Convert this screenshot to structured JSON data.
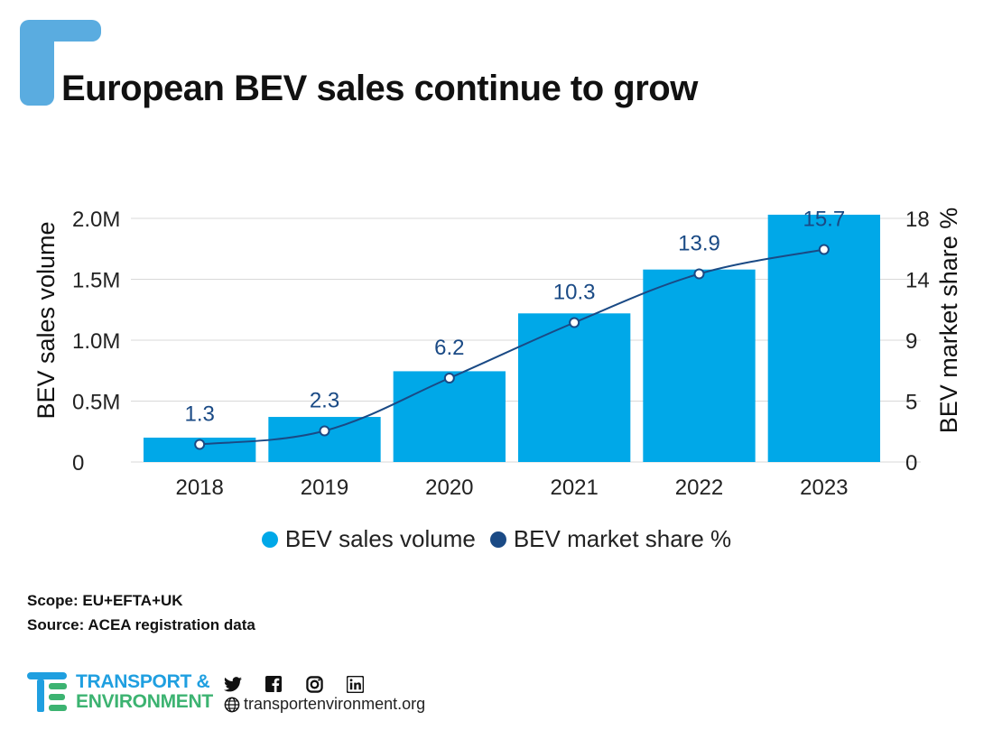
{
  "title": "European BEV sales continue to grow",
  "colors": {
    "accent_block": "#5aace0",
    "bars": "#00a8e8",
    "line": "#1a4a85",
    "grid": "#d9d9d9",
    "label": "#1a4a85"
  },
  "chart_data": {
    "type": "bar",
    "categories": [
      "2018",
      "2019",
      "2020",
      "2021",
      "2022",
      "2023"
    ],
    "series": [
      {
        "name": "BEV sales volume",
        "type": "bar",
        "axis": "left",
        "values": [
          200000,
          370000,
          745000,
          1220000,
          1580000,
          2030000
        ]
      },
      {
        "name": "BEV market share %",
        "type": "line",
        "axis": "right",
        "values": [
          1.3,
          2.3,
          6.2,
          10.3,
          13.9,
          15.7
        ],
        "data_labels": [
          "1.3",
          "2.3",
          "6.2",
          "10.3",
          "13.9",
          "15.7"
        ]
      }
    ],
    "ylabel": "BEV sales volume",
    "ylabel_right": "BEV market share %",
    "ylim": [
      0,
      2000000
    ],
    "ylim_right": [
      0,
      18
    ],
    "yticks": [
      0,
      500000,
      1000000,
      1500000,
      2000000
    ],
    "ytick_labels": [
      "0",
      "0.5M",
      "1.0M",
      "1.5M",
      "2.0M"
    ],
    "yticks_right": [
      0,
      4.5,
      9,
      13.5,
      18
    ],
    "ytick_labels_right": [
      "0",
      "5",
      "9",
      "14",
      "18"
    ],
    "grid": true,
    "legend_position": "bottom-center"
  },
  "notes": {
    "scope": "Scope: EU+EFTA+UK",
    "source": "Source: ACEA registration data"
  },
  "footer": {
    "brand_line1": "TRANSPORT &",
    "brand_line2": "ENVIRONMENT",
    "website": "transportenvironment.org",
    "socials": [
      "twitter-icon",
      "facebook-icon",
      "instagram-icon",
      "linkedin-icon"
    ]
  }
}
